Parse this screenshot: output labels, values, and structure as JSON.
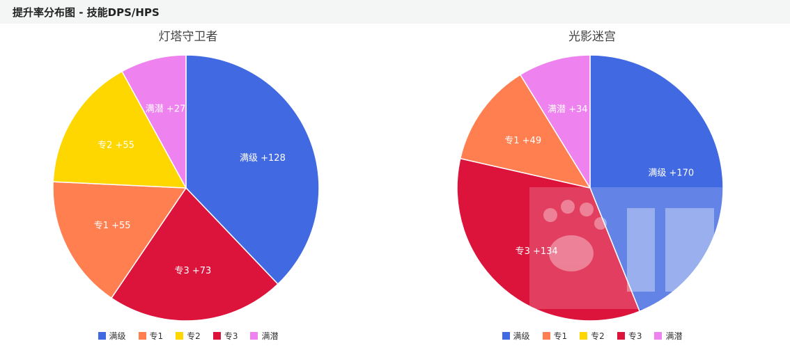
{
  "header": {
    "title": "提升率分布图 - 技能DPS/HPS"
  },
  "colors": {
    "满级": "#4169e1",
    "专1": "#ff7f50",
    "专2": "#ffd700",
    "专3": "#dc143c",
    "满潜": "#ee82ee"
  },
  "legend": [
    "满级",
    "专1",
    "专2",
    "专3",
    "满潜"
  ],
  "chart_data": [
    {
      "type": "pie",
      "title": "灯塔守卫者",
      "slices": [
        {
          "name": "满级",
          "value": 128,
          "label": "满级 +128"
        },
        {
          "name": "专3",
          "value": 73,
          "label": "专3 +73"
        },
        {
          "name": "专1",
          "value": 55,
          "label": "专1 +55"
        },
        {
          "name": "专2",
          "value": 55,
          "label": "专2 +55"
        },
        {
          "name": "满潜",
          "value": 27,
          "label": "满潜 +27"
        }
      ]
    },
    {
      "type": "pie",
      "title": "光影迷宫",
      "slices": [
        {
          "name": "满级",
          "value": 170,
          "label": "满级 +170"
        },
        {
          "name": "专3",
          "value": 134,
          "label": "专3 +134"
        },
        {
          "name": "专1",
          "value": 49,
          "label": "专1 +49"
        },
        {
          "name": "满潜",
          "value": 34,
          "label": "满潜 +34"
        }
      ]
    }
  ]
}
